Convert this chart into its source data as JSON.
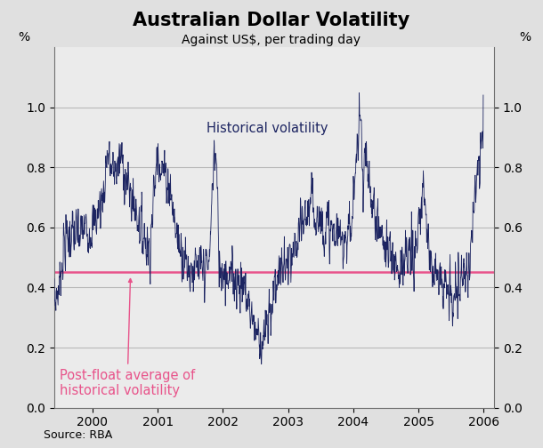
{
  "title": "Australian Dollar Volatility",
  "subtitle": "Against US$, per trading day",
  "ylabel_left": "%",
  "ylabel_right": "%",
  "source": "Source: RBA",
  "ylim": [
    0.0,
    1.2
  ],
  "yticks": [
    0.0,
    0.2,
    0.4,
    0.6,
    0.8,
    1.0
  ],
  "post_float_avg": 0.452,
  "line_color": "#1c2461",
  "avg_line_color": "#e8538a",
  "background_color": "#e0e0e0",
  "plot_bg_color": "#ebebeb",
  "annotation_hist": "Historical volatility",
  "annotation_avg": "Post-float average of\nhistorical volatility",
  "title_fontsize": 15,
  "subtitle_fontsize": 10,
  "tick_fontsize": 10,
  "annotation_fontsize": 10.5,
  "source_fontsize": 9
}
